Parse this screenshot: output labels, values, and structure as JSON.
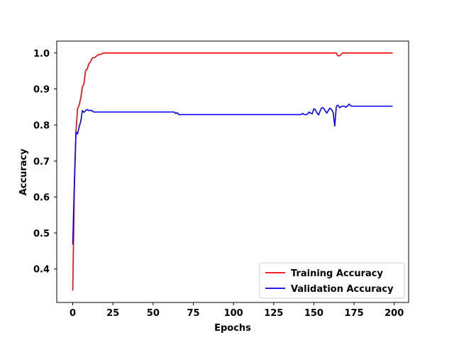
{
  "chart_data": {
    "type": "line",
    "title": "",
    "xlabel": "Epochs",
    "ylabel": "Accuracy",
    "xlim": [
      -9.95,
      208.95
    ],
    "ylim": [
      0.307,
      1.033
    ],
    "xticks": [
      0,
      25,
      50,
      75,
      100,
      125,
      150,
      175,
      200
    ],
    "yticks": [
      0.4,
      0.5,
      0.6,
      0.7,
      0.8,
      0.9,
      1.0
    ],
    "ytick_labels": [
      "0.4",
      "0.5",
      "0.6",
      "0.7",
      "0.8",
      "0.9",
      "1.0"
    ],
    "legend_position": "lower-right",
    "grid": false,
    "series": [
      {
        "name": "Training Accuracy",
        "color": "#ff0000",
        "x": [
          0,
          1,
          2,
          3,
          4,
          5,
          6,
          7,
          8,
          9,
          10,
          11,
          12,
          13,
          14,
          15,
          16,
          17,
          18,
          19,
          20,
          25,
          50,
          100,
          150,
          164,
          165,
          166,
          167,
          168,
          170,
          199
        ],
        "y": [
          0.34,
          0.62,
          0.78,
          0.845,
          0.855,
          0.875,
          0.905,
          0.915,
          0.952,
          0.955,
          0.97,
          0.975,
          0.985,
          0.987,
          0.988,
          0.992,
          0.995,
          0.996,
          0.997,
          1.0,
          1.0,
          1.0,
          1.0,
          1.0,
          1.0,
          1.0,
          0.992,
          0.992,
          0.996,
          1.0,
          1.0,
          1.0
        ]
      },
      {
        "name": "Validation Accuracy",
        "color": "#0000ff",
        "x": [
          0,
          1,
          2,
          3,
          4,
          5,
          6,
          7,
          8,
          9,
          10,
          11,
          12,
          13,
          14,
          15,
          20,
          40,
          63,
          64,
          65,
          66,
          67,
          100,
          142,
          143,
          144,
          145,
          146,
          147,
          148,
          149,
          150,
          151,
          152,
          153,
          154,
          155,
          156,
          157,
          158,
          159,
          160,
          161,
          162,
          163,
          164,
          165,
          166,
          167,
          168,
          169,
          170,
          171,
          172,
          173,
          174,
          175,
          176,
          180,
          199
        ],
        "y": [
          0.468,
          0.64,
          0.78,
          0.775,
          0.795,
          0.81,
          0.84,
          0.835,
          0.84,
          0.843,
          0.84,
          0.84,
          0.84,
          0.836,
          0.836,
          0.836,
          0.836,
          0.836,
          0.836,
          0.832,
          0.834,
          0.829,
          0.829,
          0.829,
          0.829,
          0.832,
          0.829,
          0.829,
          0.83,
          0.836,
          0.833,
          0.831,
          0.845,
          0.842,
          0.833,
          0.828,
          0.84,
          0.848,
          0.847,
          0.84,
          0.833,
          0.84,
          0.847,
          0.843,
          0.835,
          0.797,
          0.852,
          0.855,
          0.848,
          0.851,
          0.852,
          0.852,
          0.849,
          0.853,
          0.858,
          0.853,
          0.852,
          0.852,
          0.852,
          0.852,
          0.852
        ]
      }
    ]
  }
}
